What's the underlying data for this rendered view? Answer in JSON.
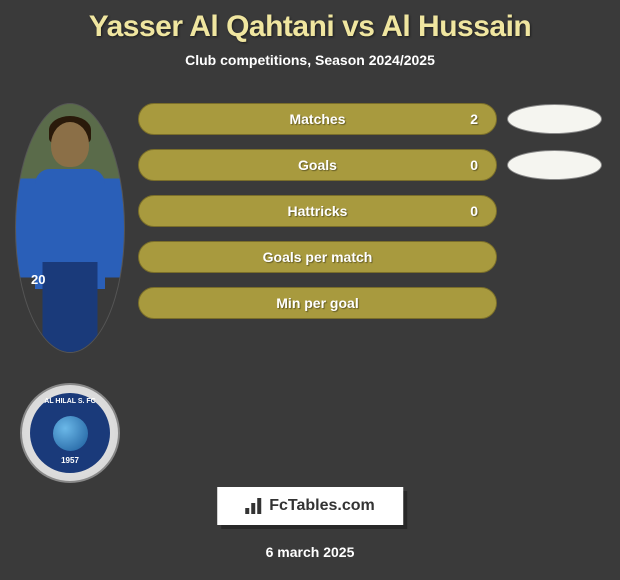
{
  "header": {
    "title": "Yasser Al Qahtani vs Al Hussain",
    "subtitle": "Club competitions, Season 2024/2025"
  },
  "player": {
    "number": "20",
    "club_name_top": "AL HILAL S. FC",
    "club_year": "1957"
  },
  "stats": [
    {
      "label": "Matches",
      "value": "2",
      "show_oval": true
    },
    {
      "label": "Goals",
      "value": "0",
      "show_oval": true
    },
    {
      "label": "Hattricks",
      "value": "0",
      "show_oval": false
    },
    {
      "label": "Goals per match",
      "value": "",
      "show_oval": false
    },
    {
      "label": "Min per goal",
      "value": "",
      "show_oval": false
    }
  ],
  "colors": {
    "accent": "#a89a3e",
    "title_color": "#f0e6a0",
    "background": "#3a3a3a",
    "pill_border": "#7a6e2a",
    "oval_bg": "#f5f5f0",
    "club_primary": "#1a3a7a"
  },
  "footer": {
    "brand": "FcTables.com",
    "date": "6 march 2025"
  }
}
